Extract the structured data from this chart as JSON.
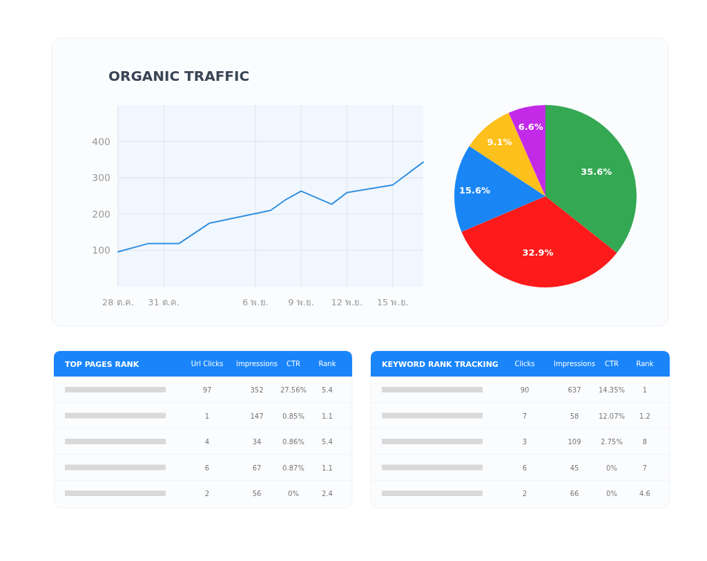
{
  "chart_data": [
    {
      "type": "line",
      "title": "ORGANIC TRAFFIC",
      "x": [
        "--10-28",
        "--10-30",
        "--11-01",
        "--11-03",
        "--11-07",
        "--11-08",
        "--11-09",
        "--11-11",
        "--11-12",
        "--11-15",
        "--11-17"
      ],
      "values": [
        96,
        119,
        119,
        175,
        210,
        240,
        263,
        227,
        259,
        280,
        343
      ],
      "color": "#2f8fe0",
      "xlim": [
        "--10-28",
        "--11-17"
      ],
      "ylim": [
        0,
        500
      ],
      "xticks": [
        {
          "value": "--10-28",
          "label": "28 ต.ค."
        },
        {
          "value": "--10-31",
          "label": "31 ต.ค."
        },
        {
          "value": "--11-06",
          "label": "6 พ.ย."
        },
        {
          "value": "--11-09",
          "label": "9 พ.ย."
        },
        {
          "value": "--11-12",
          "label": "12 พ.ย."
        },
        {
          "value": "--11-15",
          "label": "15 พ.ย."
        }
      ],
      "yticks": [
        100,
        200,
        300,
        400
      ],
      "grid": true
    },
    {
      "type": "pie",
      "categories": [
        null,
        null,
        null,
        null,
        null
      ],
      "values": [
        35.6,
        32.9,
        15.6,
        9.1,
        6.6
      ],
      "colors": [
        "#34a853",
        "#fc1a1a",
        "#1a86f5",
        "#fdc01c",
        "#c22ae8"
      ],
      "value_labels": [
        "35.6%",
        "32.9%",
        "15.6%",
        "9.1%",
        "6.6%"
      ]
    },
    {
      "type": "other",
      "title": "TOP PAGES RANK",
      "categories": [
        "Url Clicks",
        "Impressions",
        "CTR",
        "Rank"
      ],
      "cell_labels": [
        [
          "97",
          "352",
          "27.56%",
          "5.4"
        ],
        [
          "1",
          "147",
          "0.85%",
          "1.1"
        ],
        [
          "4",
          "34",
          "0.86%",
          "5.4"
        ],
        [
          "6",
          "67",
          "0.87%",
          "1.1"
        ],
        [
          "2",
          "56",
          "0%",
          "2.4"
        ]
      ]
    },
    {
      "type": "other",
      "title": "KEYWORD RANK TRACKING",
      "categories": [
        "Clicks",
        "Impressions",
        "CTR",
        "Rank"
      ],
      "cell_labels": [
        [
          "90",
          "637",
          "14.35%",
          "1"
        ],
        [
          "7",
          "58",
          "12.07%",
          "1.2"
        ],
        [
          "3",
          "109",
          "2.75%",
          "8"
        ],
        [
          "6",
          "45",
          "0%",
          "7"
        ],
        [
          "2",
          "66",
          "0%",
          "4.6"
        ]
      ]
    }
  ]
}
